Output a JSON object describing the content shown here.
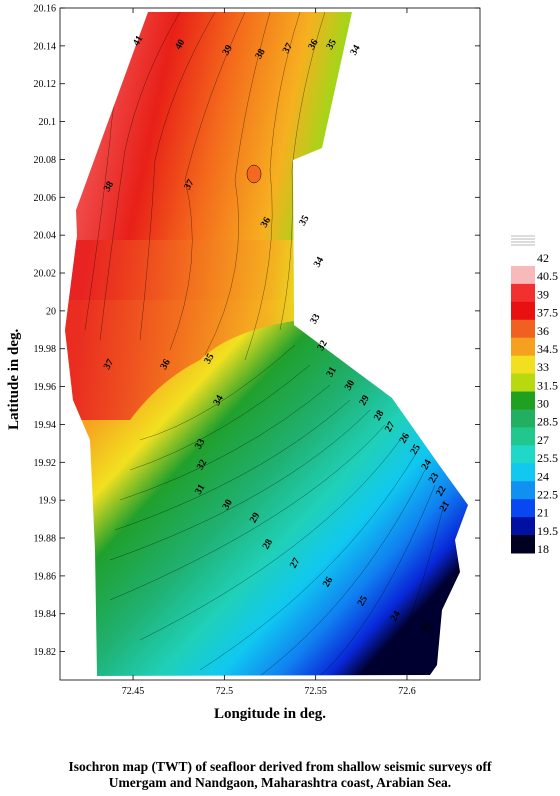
{
  "axes": {
    "x_title": "Longitude in deg.",
    "y_title": "Latitude in deg.",
    "x_ticks": [
      "72.45",
      "72.5",
      "72.55",
      "72.6"
    ],
    "y_ticks": [
      "19.82",
      "19.84",
      "19.86",
      "19.88",
      "19.9",
      "19.92",
      "19.94",
      "19.96",
      "19.98",
      "20",
      "20.02",
      "20.04",
      "20.06",
      "20.08",
      "20.1",
      "20.12",
      "20.14",
      "20.16"
    ]
  },
  "legend": {
    "labels": [
      "42",
      "40.5",
      "39",
      "37.5",
      "36",
      "34.5",
      "33",
      "31.5",
      "30",
      "28.5",
      "27",
      "25.5",
      "24",
      "22.5",
      "21",
      "19.5",
      "18"
    ],
    "colors": [
      "#ffffff",
      "#f7b9b9",
      "#f23030",
      "#e81010",
      "#f06020",
      "#f6a020",
      "#f2e020",
      "#b8d810",
      "#20a020",
      "#20b060",
      "#20c890",
      "#20d8c8",
      "#10c8f0",
      "#1090f0",
      "#0848f0",
      "#0010a0",
      "#000020"
    ]
  },
  "contour_labels": [
    "41",
    "40",
    "39",
    "38",
    "37",
    "36",
    "35",
    "34",
    "38",
    "37",
    "36",
    "35",
    "34",
    "33",
    "32",
    "37",
    "36",
    "35",
    "34",
    "33",
    "32",
    "31",
    "30",
    "29",
    "28",
    "31",
    "30",
    "29",
    "28",
    "27",
    "26",
    "25",
    "24",
    "23",
    "22",
    "21",
    "27",
    "26",
    "25",
    "24",
    "23"
  ],
  "caption": {
    "line1": "Isochron map (TWT) of seafloor derived from shallow seismic surveys off",
    "line2": "Umergam and Nandgaon, Maharashtra coast, Arabian Sea."
  },
  "chart_data": {
    "type": "heatmap",
    "title": "",
    "xlabel": "Longitude in deg.",
    "ylabel": "Latitude in deg.",
    "xlim": [
      72.41,
      72.64
    ],
    "ylim": [
      19.805,
      20.16
    ],
    "colorbar": {
      "min": 18,
      "max": 42,
      "step": 1.5
    },
    "contour_labels": [
      {
        "value": 41,
        "lon": 72.454,
        "lat": 20.142
      },
      {
        "value": 40,
        "lon": 72.477,
        "lat": 20.14
      },
      {
        "value": 39,
        "lon": 72.503,
        "lat": 20.137
      },
      {
        "value": 38,
        "lon": 72.521,
        "lat": 20.135
      },
      {
        "value": 37,
        "lon": 72.536,
        "lat": 20.138
      },
      {
        "value": 36,
        "lon": 72.55,
        "lat": 20.14
      },
      {
        "value": 35,
        "lon": 72.56,
        "lat": 20.14
      },
      {
        "value": 34,
        "lon": 72.573,
        "lat": 20.137
      },
      {
        "value": 38,
        "lon": 72.438,
        "lat": 20.065
      },
      {
        "value": 37,
        "lon": 72.482,
        "lat": 20.066
      },
      {
        "value": 36,
        "lon": 72.524,
        "lat": 20.046
      },
      {
        "value": 35,
        "lon": 72.545,
        "lat": 20.047
      },
      {
        "value": 34,
        "lon": 72.553,
        "lat": 20.025
      },
      {
        "value": 33,
        "lon": 72.551,
        "lat": 19.995
      },
      {
        "value": 32,
        "lon": 72.555,
        "lat": 19.981
      },
      {
        "value": 37,
        "lon": 72.438,
        "lat": 19.971
      },
      {
        "value": 36,
        "lon": 72.469,
        "lat": 19.971
      },
      {
        "value": 35,
        "lon": 72.493,
        "lat": 19.974
      },
      {
        "value": 34,
        "lon": 72.498,
        "lat": 19.952
      },
      {
        "value": 33,
        "lon": 72.488,
        "lat": 19.929
      },
      {
        "value": 32,
        "lon": 72.489,
        "lat": 19.918
      },
      {
        "value": 31,
        "lon": 72.488,
        "lat": 19.905
      },
      {
        "value": 30,
        "lon": 72.503,
        "lat": 19.897
      },
      {
        "value": 29,
        "lon": 72.518,
        "lat": 19.89
      },
      {
        "value": 28,
        "lon": 72.525,
        "lat": 19.876
      },
      {
        "value": 31,
        "lon": 72.56,
        "lat": 19.967
      },
      {
        "value": 30,
        "lon": 72.57,
        "lat": 19.96
      },
      {
        "value": 29,
        "lon": 72.578,
        "lat": 19.952
      },
      {
        "value": 28,
        "lon": 72.586,
        "lat": 19.944
      },
      {
        "value": 27,
        "lon": 72.592,
        "lat": 19.938
      },
      {
        "value": 26,
        "lon": 72.6,
        "lat": 19.932
      },
      {
        "value": 25,
        "lon": 72.606,
        "lat": 19.926
      },
      {
        "value": 24,
        "lon": 72.612,
        "lat": 19.918
      },
      {
        "value": 23,
        "lon": 72.616,
        "lat": 19.911
      },
      {
        "value": 22,
        "lon": 72.62,
        "lat": 19.904
      },
      {
        "value": 21,
        "lon": 72.622,
        "lat": 19.896
      },
      {
        "value": 27,
        "lon": 72.54,
        "lat": 19.866
      },
      {
        "value": 26,
        "lon": 72.558,
        "lat": 19.856
      },
      {
        "value": 25,
        "lon": 72.577,
        "lat": 19.846
      },
      {
        "value": 24,
        "lon": 72.595,
        "lat": 19.838
      },
      {
        "value": 23,
        "lon": 72.612,
        "lat": 19.832
      }
    ]
  }
}
